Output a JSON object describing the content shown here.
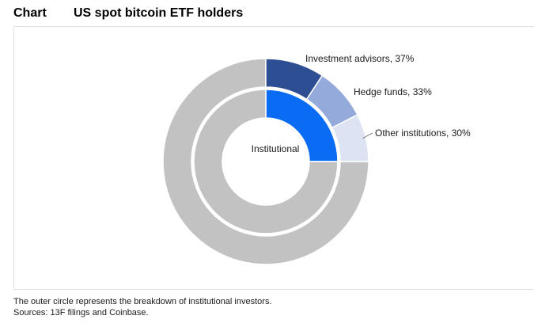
{
  "header": {
    "label": "Chart",
    "title": "US spot bitcoin ETF holders"
  },
  "chart_data": {
    "type": "pie",
    "inner_ring": {
      "segments": [
        {
          "name": "Institutional",
          "value": 25,
          "color": "#0a6cf5"
        },
        {
          "name": "",
          "value": 75,
          "color": "#c2c2c2"
        }
      ],
      "center_label": "Institutional"
    },
    "outer_ring": {
      "segments": [
        {
          "name": "Investment advisors",
          "value": 37,
          "label": "Investment advisors, 37%",
          "color": "#2e4e93"
        },
        {
          "name": "Hedge funds",
          "value": 33,
          "label": "Hedge funds, 33%",
          "color": "#93aadb"
        },
        {
          "name": "Other institutions",
          "value": 30,
          "label": "Other institutions, 30%",
          "color": "#dde3f2"
        }
      ],
      "remainder_color": "#c2c2c2"
    }
  },
  "footer": {
    "note": "The outer circle represents the breakdown of institutional investors.",
    "sources": "Sources: 13F filings and Coinbase."
  }
}
